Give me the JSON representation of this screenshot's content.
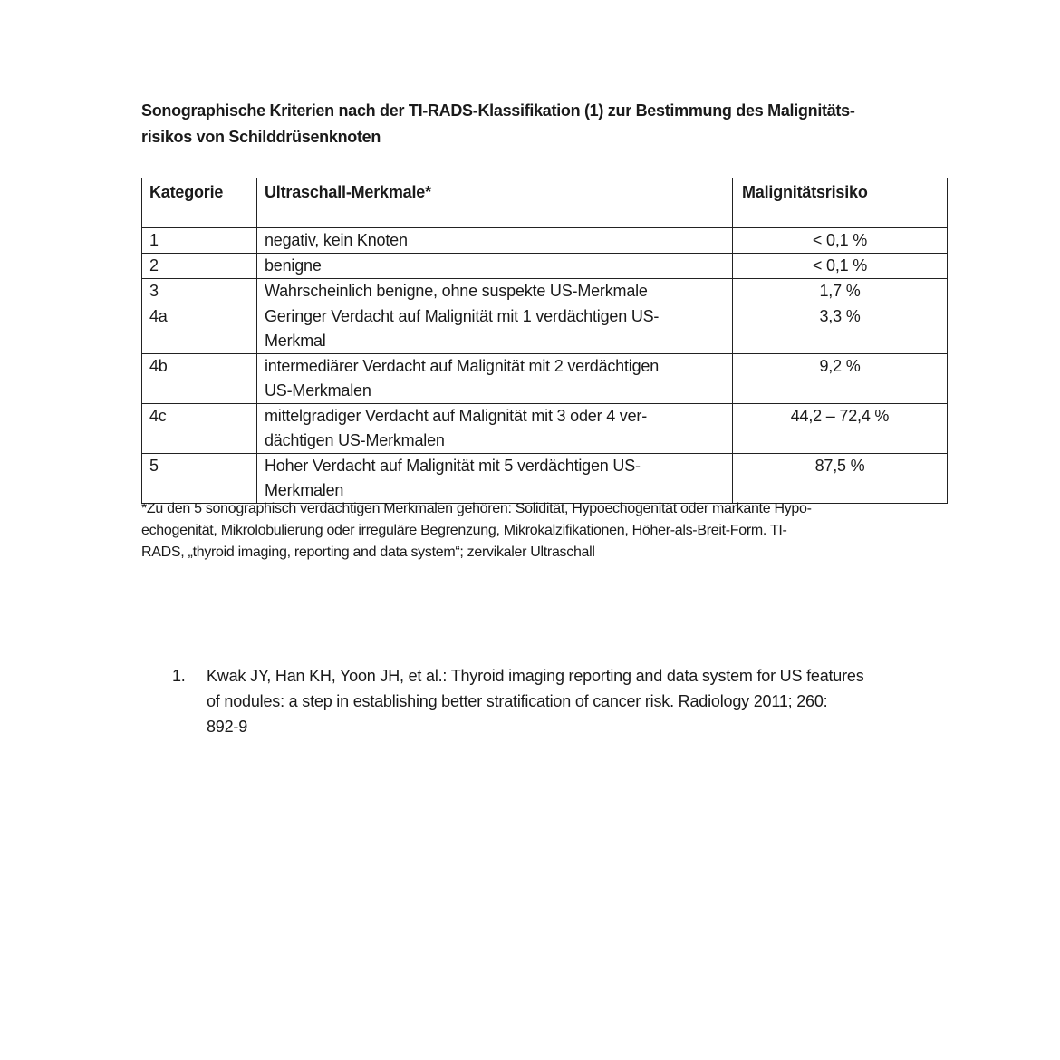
{
  "title": "Sonographische Kriterien nach der TI-RADS-Klassifikation (1) zur Bestimmung des Malignitäts-risikos von Schilddrüsenknoten",
  "title_lines": [
    "Sonographische Kriterien nach der TI-RADS-Klassifikation (1) zur Bestimmung des Malignitäts-",
    "risikos von Schilddrüsenknoten"
  ],
  "table": {
    "headers": [
      "Kategorie",
      "Ultraschall-Merkmale*",
      "Malignitätsrisiko"
    ],
    "rows": [
      {
        "kategorie": "1",
        "merkmale": [
          "negativ, kein Knoten"
        ],
        "risiko": "< 0,1 %"
      },
      {
        "kategorie": "2",
        "merkmale": [
          "benigne"
        ],
        "risiko": "< 0,1 %"
      },
      {
        "kategorie": "3",
        "merkmale": [
          "Wahrscheinlich benigne, ohne suspekte US-Merkmale"
        ],
        "risiko": "1,7 %"
      },
      {
        "kategorie": "4a",
        "merkmale": [
          "Geringer Verdacht auf Malignität mit 1 verdächtigen US-",
          "Merkmal"
        ],
        "risiko": "3,3 %"
      },
      {
        "kategorie": "4b",
        "merkmale": [
          "intermediärer Verdacht auf Malignität mit 2 verdächtigen",
          "US-Merkmalen"
        ],
        "risiko": "9,2 %"
      },
      {
        "kategorie": "4c",
        "merkmale": [
          "mittelgradiger Verdacht auf Malignität mit 3 oder 4 ver-",
          "dächtigen US-Merkmalen"
        ],
        "risiko": "44,2 – 72,4 %"
      },
      {
        "kategorie": "5",
        "merkmale": [
          "Hoher Verdacht auf Malignität mit 5 verdächtigen US-",
          "Merkmalen"
        ],
        "risiko": "87,5 %"
      }
    ]
  },
  "footnote_lines": [
    "*Zu den 5 sonographisch verdächtigen Merkmalen gehören: Solidität, Hypoechogenität oder markante Hypo-",
    "echogenität, Mikrolobulierung oder irreguläre Begrenzung, Mikrokalzifikationen, Höher-als-Breit-Form. TI-",
    "RADS, „thyroid imaging, reporting and data system“; zervikaler Ultraschall"
  ],
  "references": [
    {
      "number": "1.",
      "lines": [
        "Kwak JY, Han KH, Yoon JH, et al.: Thyroid imaging reporting and data system for US features",
        "of nodules: a step in establishing better stratification of cancer risk. Radiology 2011; 260:",
        "892-9"
      ]
    }
  ]
}
